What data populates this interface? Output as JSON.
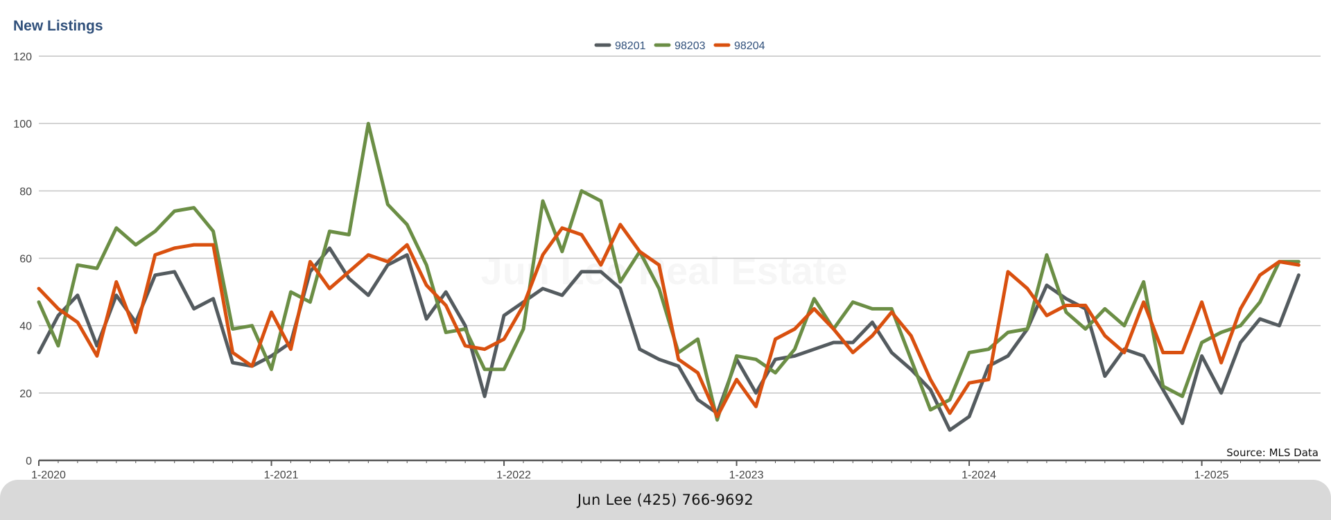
{
  "chart_data": {
    "type": "line",
    "title": "New Listings",
    "watermark": "Jun Lee Real Estate",
    "source_note": "Source: MLS Data",
    "ylim": [
      0,
      120
    ],
    "yticks": [
      0,
      20,
      40,
      60,
      80,
      100,
      120
    ],
    "grid": true,
    "legend_position": "top-center",
    "x_start": "2020-01",
    "xtick_labels": [
      "1-2020",
      "1-2021",
      "1-2022",
      "1-2023",
      "1-2024",
      "1-2025"
    ],
    "series": [
      {
        "name": "98201",
        "color": "#545b5f",
        "values": [
          32,
          43,
          49,
          34,
          49,
          41,
          55,
          56,
          45,
          48,
          29,
          28,
          31,
          35,
          56,
          63,
          54,
          49,
          58,
          61,
          42,
          50,
          40,
          19,
          43,
          47,
          51,
          49,
          56,
          56,
          51,
          33,
          30,
          28,
          18,
          14,
          30,
          20,
          30,
          31,
          33,
          35,
          35,
          41,
          32,
          27,
          21,
          9,
          13,
          28,
          31,
          39,
          52,
          48,
          45,
          25,
          33,
          31,
          21,
          11,
          31,
          20,
          35,
          42,
          40,
          55
        ]
      },
      {
        "name": "98203",
        "color": "#6b8e45",
        "values": [
          47,
          34,
          58,
          57,
          69,
          64,
          68,
          74,
          75,
          68,
          39,
          40,
          27,
          50,
          47,
          68,
          67,
          100,
          76,
          70,
          58,
          38,
          39,
          27,
          27,
          39,
          77,
          62,
          80,
          77,
          53,
          62,
          51,
          32,
          36,
          12,
          31,
          30,
          26,
          33,
          48,
          39,
          47,
          45,
          45,
          30,
          15,
          18,
          32,
          33,
          38,
          39,
          61,
          44,
          39,
          45,
          40,
          53,
          22,
          19,
          35,
          38,
          40,
          47,
          59,
          59
        ]
      },
      {
        "name": "98204",
        "color": "#d9500f",
        "values": [
          51,
          45,
          41,
          31,
          53,
          38,
          61,
          63,
          64,
          64,
          32,
          28,
          44,
          33,
          59,
          51,
          56,
          61,
          59,
          64,
          52,
          46,
          34,
          33,
          36,
          46,
          61,
          69,
          67,
          58,
          70,
          62,
          58,
          30,
          26,
          13,
          24,
          16,
          36,
          39,
          45,
          39,
          32,
          37,
          44,
          37,
          24,
          14,
          23,
          24,
          56,
          51,
          43,
          46,
          46,
          37,
          32,
          47,
          32,
          32,
          47,
          29,
          45,
          55,
          59,
          58
        ]
      }
    ]
  },
  "footer": {
    "contact": "Jun Lee (425) 766-9692"
  }
}
